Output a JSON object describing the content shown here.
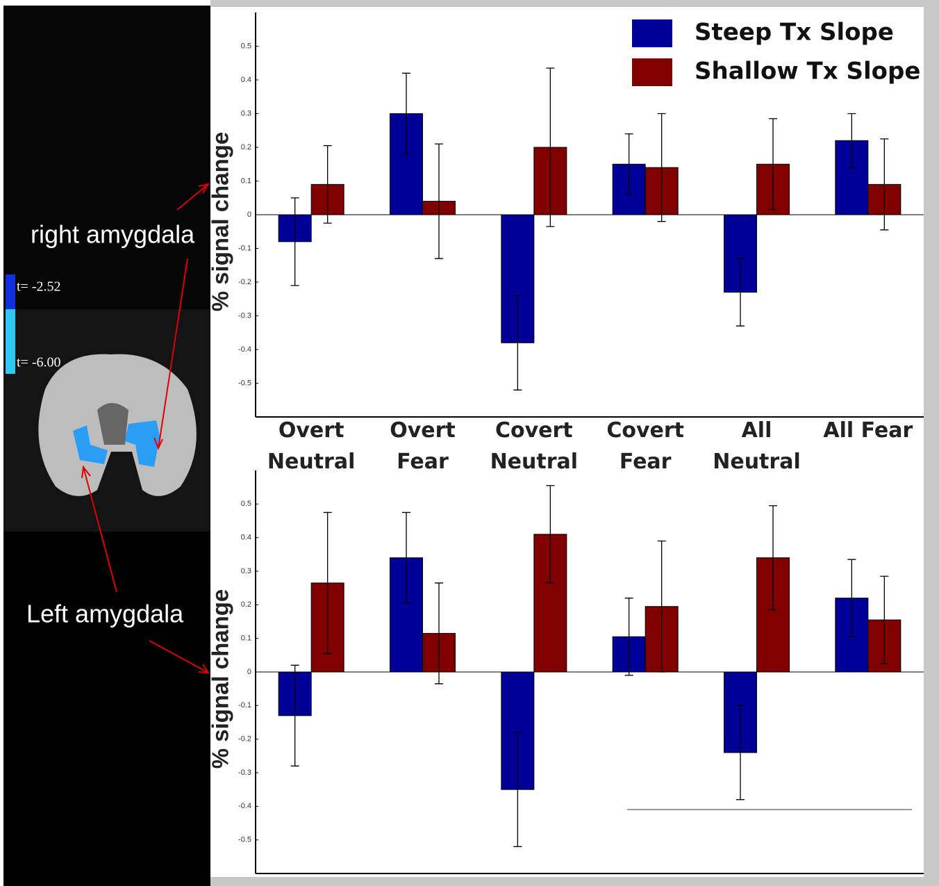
{
  "chart_data": [
    {
      "type": "bar",
      "y_label": "% signal change",
      "categories": [
        "Overt Neutral",
        "Overt Fear",
        "Covert Neutral",
        "Covert Fear",
        "All Neutral",
        "All Fear"
      ],
      "series": [
        {
          "name": "Steep Tx Slope",
          "color": "#000099",
          "values": [
            -0.08,
            0.3,
            -0.38,
            0.15,
            -0.23,
            0.22
          ],
          "errors": [
            0.13,
            0.12,
            0.14,
            0.09,
            0.1,
            0.08
          ]
        },
        {
          "name": "Shallow Tx Slope",
          "color": "#800000",
          "values": [
            0.09,
            0.04,
            0.2,
            0.14,
            0.15,
            0.09
          ],
          "errors": [
            0.115,
            0.17,
            0.235,
            0.16,
            0.135,
            0.135
          ]
        }
      ],
      "ylim": [
        -0.6,
        0.6
      ],
      "yticks": [
        -0.5,
        -0.4,
        -0.3,
        -0.2,
        -0.1,
        0,
        0.1,
        0.2,
        0.3,
        0.4,
        0.5
      ],
      "legend": "upper right"
    },
    {
      "type": "bar",
      "y_label": "% signal change",
      "categories": [
        null,
        null,
        null,
        null,
        null,
        null
      ],
      "series": [
        {
          "color": "#000099",
          "values": [
            -0.13,
            0.34,
            -0.35,
            0.105,
            -0.24,
            0.22
          ],
          "errors": [
            0.15,
            0.135,
            0.17,
            0.115,
            0.14,
            0.115
          ]
        },
        {
          "color": "#800000",
          "values": [
            0.265,
            0.115,
            0.41,
            0.195,
            0.34,
            0.155
          ],
          "errors": [
            0.21,
            0.15,
            0.145,
            0.195,
            0.155,
            0.13
          ]
        }
      ],
      "ylim": [
        -0.6,
        0.6
      ],
      "yticks": [
        -0.5,
        -0.4,
        -0.3,
        -0.2,
        -0.1,
        0,
        0.1,
        0.2,
        0.3,
        0.4,
        0.5
      ]
    }
  ],
  "brain_panel": {
    "right_label": "right amygdala",
    "left_label": "Left amygdala",
    "colorbar_top": "t= -2.52",
    "colorbar_bottom": "t= -6.00"
  }
}
